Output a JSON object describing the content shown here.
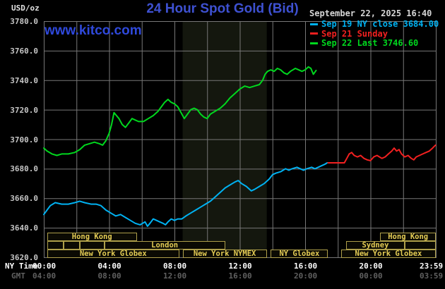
{
  "header": {
    "units_label": "USD/oz",
    "title": "24 Hour Spot Gold (Bid)",
    "datetime": "September 22, 2025 16:40",
    "watermark": "www.kitco.com"
  },
  "axes": {
    "y_ticks": [
      "3780.0",
      "3760.0",
      "3740.0",
      "3720.0",
      "3700.0",
      "3680.0",
      "3660.0",
      "3640.0",
      "3620.0"
    ],
    "x_rows": [
      {
        "label": "NY Time",
        "color": "#FFFFFF",
        "ticks": [
          {
            "t": 0,
            "text": "00:00"
          },
          {
            "t": 4,
            "text": "04:00"
          },
          {
            "t": 8,
            "text": "08:00"
          },
          {
            "t": 12,
            "text": "12:00"
          },
          {
            "t": 16,
            "text": "16:00"
          },
          {
            "t": 20,
            "text": "20:00"
          },
          {
            "t": 23.983,
            "text": "23:59"
          }
        ]
      },
      {
        "label": "GMT",
        "color": "#606060",
        "ticks": [
          {
            "t": 0,
            "text": "04:00"
          },
          {
            "t": 4,
            "text": "08:00"
          },
          {
            "t": 8,
            "text": "12:00"
          },
          {
            "t": 12,
            "text": "16:00"
          },
          {
            "t": 16,
            "text": "20:00"
          },
          {
            "t": 20,
            "text": "00:00"
          },
          {
            "t": 23.983,
            "text": "03:59"
          }
        ]
      }
    ]
  },
  "sessions": {
    "rows": [
      {
        "boxes": [
          {
            "start": 0.2,
            "end": 5.7,
            "label": "Hong Kong"
          },
          {
            "start": 20.6,
            "end": 24,
            "label": "Hong Kong"
          }
        ]
      },
      {
        "boxes": [
          {
            "start": 0.2,
            "end": 1.2,
            "label": ""
          },
          {
            "start": 1.2,
            "end": 2.2,
            "label": ""
          },
          {
            "start": 2.2,
            "end": 3.7,
            "label": ""
          },
          {
            "start": 3.7,
            "end": 11.1,
            "label": "London"
          },
          {
            "start": 18.5,
            "end": 22.1,
            "label": "Sydney"
          },
          {
            "start": 22.1,
            "end": 24,
            "label": ""
          }
        ]
      },
      {
        "boxes": [
          {
            "start": 0.2,
            "end": 8.3,
            "label": "New York Globex"
          },
          {
            "start": 8.5,
            "end": 13.65,
            "label": "New York NYMEX"
          },
          {
            "start": 13.9,
            "end": 17.4,
            "label": "NY Globex"
          },
          {
            "start": 18.2,
            "end": 24,
            "label": "New York Globex"
          }
        ]
      }
    ]
  },
  "chart_data": {
    "type": "line",
    "title": "24 Hour Spot Gold (Bid)",
    "xlabel": "NY Time (hours 00:00-23:59)",
    "ylabel": "USD/oz",
    "xlim": [
      0,
      24
    ],
    "ylim": [
      3620,
      3780
    ],
    "grid": {
      "x_interval_hours": 2,
      "y_interval": 20,
      "color": "#777777",
      "on": true
    },
    "highlight_band": {
      "start": 8.5,
      "end": 13.65,
      "color": "#14170E",
      "label": "New York NYMEX session"
    },
    "legend_position": "top-right",
    "series": [
      {
        "name": "Sep 19 NY close 3684.00",
        "color": "#00B2F2",
        "points": [
          [
            0,
            3649
          ],
          [
            0.2,
            3652
          ],
          [
            0.4,
            3655
          ],
          [
            0.7,
            3657
          ],
          [
            1.1,
            3656
          ],
          [
            1.5,
            3656
          ],
          [
            1.9,
            3657
          ],
          [
            2.2,
            3658
          ],
          [
            2.5,
            3657
          ],
          [
            2.9,
            3656
          ],
          [
            3.2,
            3656
          ],
          [
            3.5,
            3655
          ],
          [
            3.8,
            3652
          ],
          [
            4.1,
            3650
          ],
          [
            4.4,
            3648
          ],
          [
            4.7,
            3649
          ],
          [
            5.0,
            3647
          ],
          [
            5.3,
            3645
          ],
          [
            5.6,
            3643
          ],
          [
            5.9,
            3642
          ],
          [
            6.2,
            3644
          ],
          [
            6.35,
            3641
          ],
          [
            6.5,
            3643
          ],
          [
            6.7,
            3646
          ],
          [
            6.9,
            3645
          ],
          [
            7.1,
            3644
          ],
          [
            7.3,
            3643
          ],
          [
            7.45,
            3642
          ],
          [
            7.6,
            3644
          ],
          [
            7.8,
            3646
          ],
          [
            8.0,
            3645
          ],
          [
            8.2,
            3646
          ],
          [
            8.45,
            3646
          ],
          [
            8.7,
            3648
          ],
          [
            9.0,
            3650
          ],
          [
            9.3,
            3652
          ],
          [
            9.6,
            3654
          ],
          [
            9.9,
            3656
          ],
          [
            10.2,
            3658
          ],
          [
            10.5,
            3661
          ],
          [
            10.8,
            3664
          ],
          [
            11.1,
            3667
          ],
          [
            11.4,
            3669
          ],
          [
            11.7,
            3671
          ],
          [
            11.9,
            3672
          ],
          [
            12.1,
            3670
          ],
          [
            12.4,
            3668
          ],
          [
            12.7,
            3665
          ],
          [
            12.9,
            3666
          ],
          [
            13.2,
            3668
          ],
          [
            13.5,
            3670
          ],
          [
            13.8,
            3673
          ],
          [
            14.0,
            3676
          ],
          [
            14.2,
            3677
          ],
          [
            14.5,
            3678
          ],
          [
            14.8,
            3680
          ],
          [
            15.0,
            3679
          ],
          [
            15.2,
            3680
          ],
          [
            15.5,
            3681
          ],
          [
            15.7,
            3680
          ],
          [
            15.9,
            3679
          ],
          [
            16.1,
            3680
          ],
          [
            16.4,
            3681
          ],
          [
            16.6,
            3680
          ],
          [
            16.8,
            3681
          ],
          [
            17.0,
            3682
          ],
          [
            17.2,
            3683
          ],
          [
            17.35,
            3684
          ]
        ]
      },
      {
        "name": "Sep 21 Sunday",
        "color": "#F22020",
        "points": [
          [
            17.4,
            3684
          ],
          [
            18.4,
            3684
          ],
          [
            18.55,
            3687
          ],
          [
            18.7,
            3690
          ],
          [
            18.85,
            3691
          ],
          [
            19.0,
            3689
          ],
          [
            19.2,
            3688
          ],
          [
            19.4,
            3689
          ],
          [
            19.6,
            3687
          ],
          [
            19.8,
            3686
          ],
          [
            20.0,
            3685.5
          ],
          [
            20.2,
            3688
          ],
          [
            20.4,
            3689
          ],
          [
            20.55,
            3688
          ],
          [
            20.7,
            3687
          ],
          [
            20.9,
            3688
          ],
          [
            21.1,
            3690
          ],
          [
            21.3,
            3692
          ],
          [
            21.45,
            3694
          ],
          [
            21.6,
            3692
          ],
          [
            21.75,
            3693
          ],
          [
            21.9,
            3690
          ],
          [
            22.1,
            3688
          ],
          [
            22.3,
            3689
          ],
          [
            22.5,
            3687
          ],
          [
            22.65,
            3686
          ],
          [
            22.8,
            3688
          ],
          [
            23.0,
            3689
          ],
          [
            23.2,
            3690
          ],
          [
            23.4,
            3691
          ],
          [
            23.6,
            3692
          ],
          [
            23.8,
            3694
          ],
          [
            23.98,
            3696
          ]
        ]
      },
      {
        "name": "Sep 22 Last 3746.60",
        "color": "#00D81E",
        "points": [
          [
            0,
            3694
          ],
          [
            0.2,
            3692
          ],
          [
            0.5,
            3690
          ],
          [
            0.8,
            3689
          ],
          [
            1.1,
            3690
          ],
          [
            1.5,
            3690
          ],
          [
            1.9,
            3691
          ],
          [
            2.2,
            3693
          ],
          [
            2.5,
            3696
          ],
          [
            2.8,
            3697
          ],
          [
            3.1,
            3698
          ],
          [
            3.4,
            3697
          ],
          [
            3.6,
            3696
          ],
          [
            3.8,
            3699
          ],
          [
            4.0,
            3704
          ],
          [
            4.15,
            3710
          ],
          [
            4.3,
            3718
          ],
          [
            4.45,
            3716
          ],
          [
            4.6,
            3714
          ],
          [
            4.8,
            3710
          ],
          [
            5.0,
            3708
          ],
          [
            5.2,
            3711
          ],
          [
            5.4,
            3714
          ],
          [
            5.6,
            3713
          ],
          [
            5.8,
            3712
          ],
          [
            6.1,
            3712
          ],
          [
            6.4,
            3714
          ],
          [
            6.7,
            3716
          ],
          [
            7.0,
            3719
          ],
          [
            7.2,
            3722
          ],
          [
            7.4,
            3725
          ],
          [
            7.6,
            3727
          ],
          [
            7.8,
            3725
          ],
          [
            8.0,
            3724
          ],
          [
            8.2,
            3722
          ],
          [
            8.4,
            3718
          ],
          [
            8.6,
            3714
          ],
          [
            8.8,
            3717
          ],
          [
            9.0,
            3720
          ],
          [
            9.2,
            3721
          ],
          [
            9.4,
            3720
          ],
          [
            9.6,
            3717
          ],
          [
            9.8,
            3715
          ],
          [
            10.0,
            3714
          ],
          [
            10.2,
            3717
          ],
          [
            10.5,
            3719
          ],
          [
            10.8,
            3721
          ],
          [
            11.1,
            3724
          ],
          [
            11.4,
            3728
          ],
          [
            11.7,
            3731
          ],
          [
            12.0,
            3734
          ],
          [
            12.3,
            3736
          ],
          [
            12.6,
            3735
          ],
          [
            12.9,
            3736
          ],
          [
            13.2,
            3737
          ],
          [
            13.4,
            3740
          ],
          [
            13.55,
            3744
          ],
          [
            13.7,
            3746
          ],
          [
            13.9,
            3747
          ],
          [
            14.1,
            3746
          ],
          [
            14.3,
            3748
          ],
          [
            14.5,
            3747
          ],
          [
            14.7,
            3745
          ],
          [
            14.9,
            3744
          ],
          [
            15.1,
            3746
          ],
          [
            15.4,
            3748
          ],
          [
            15.6,
            3747
          ],
          [
            15.8,
            3746
          ],
          [
            16.0,
            3747
          ],
          [
            16.2,
            3749
          ],
          [
            16.35,
            3748
          ],
          [
            16.5,
            3744
          ],
          [
            16.67,
            3746.6
          ]
        ]
      }
    ]
  }
}
